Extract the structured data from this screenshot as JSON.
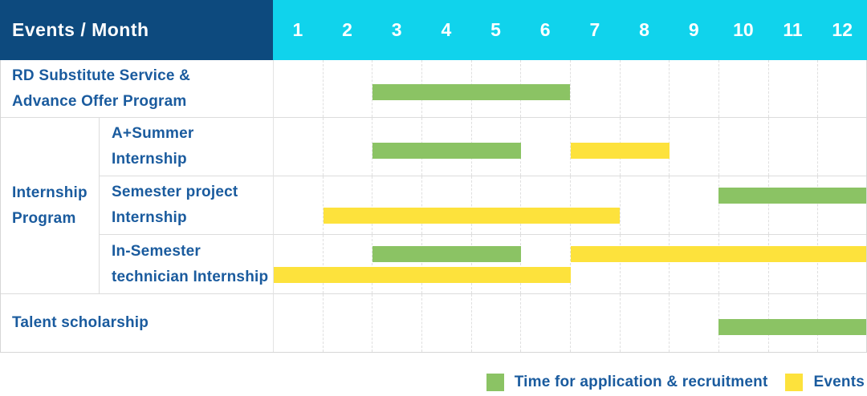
{
  "header": {
    "title": "Events / Month"
  },
  "chart_data": {
    "type": "bar",
    "subtype": "gantt-timeline-table",
    "title": "Events / Month",
    "x_unit": "month",
    "x_range": [
      1,
      12
    ],
    "grid": true,
    "legend_position": "bottom-right",
    "months": [
      "1",
      "2",
      "3",
      "4",
      "5",
      "6",
      "7",
      "8",
      "9",
      "10",
      "11",
      "12"
    ],
    "group_label_lines": [
      "Internship",
      "Program"
    ],
    "rows": [
      {
        "name": "rd-substitute-service-advance-offer-program",
        "label_lines": [
          "RD Substitute Service &",
          "Advance Offer Program"
        ],
        "group": "",
        "bars": [
          {
            "type": "application",
            "start_month": 3,
            "end_month": 6,
            "line": 1
          }
        ]
      },
      {
        "name": "a-plus-summer-internship",
        "label_lines": [
          "A+Summer",
          "Internship"
        ],
        "group": "Internship Program",
        "bars": [
          {
            "type": "application",
            "start_month": 3,
            "end_month": 5,
            "line": 1
          },
          {
            "type": "event",
            "start_month": 7,
            "end_month": 8,
            "line": 1
          }
        ]
      },
      {
        "name": "semester-project-internship",
        "label_lines": [
          "Semester project",
          "Internship"
        ],
        "group": "Internship Program",
        "bars": [
          {
            "type": "application",
            "start_month": 10,
            "end_month": 12,
            "line": 1
          },
          {
            "type": "event",
            "start_month": 2,
            "end_month": 7,
            "line": 2
          }
        ]
      },
      {
        "name": "in-semester-technician-internship",
        "label_lines": [
          "In-Semester",
          "technician Internship"
        ],
        "group": "Internship Program",
        "bars": [
          {
            "type": "application",
            "start_month": 3,
            "end_month": 5,
            "line": 1
          },
          {
            "type": "event",
            "start_month": 7,
            "end_month": 12,
            "line": 1
          },
          {
            "type": "event",
            "start_month": 1,
            "end_month": 6,
            "line": 2
          }
        ]
      },
      {
        "name": "talent-scholarship",
        "label_lines": [
          "Talent scholarship"
        ],
        "group": "",
        "bars": [
          {
            "type": "application",
            "start_month": 10,
            "end_month": 12,
            "line": 1
          }
        ]
      }
    ],
    "legend": [
      {
        "type": "application",
        "label": "Time for application & recruitment",
        "color": "#8bc364"
      },
      {
        "type": "event",
        "label": "Events",
        "color": "#fde23c"
      }
    ],
    "colors": {
      "header_bg": "#0d4a7e",
      "months_bg": "#10d3ec",
      "header_text": "#ffffff",
      "label_text": "#1a5b9e",
      "application": "#8bc364",
      "event": "#fde23c"
    }
  }
}
